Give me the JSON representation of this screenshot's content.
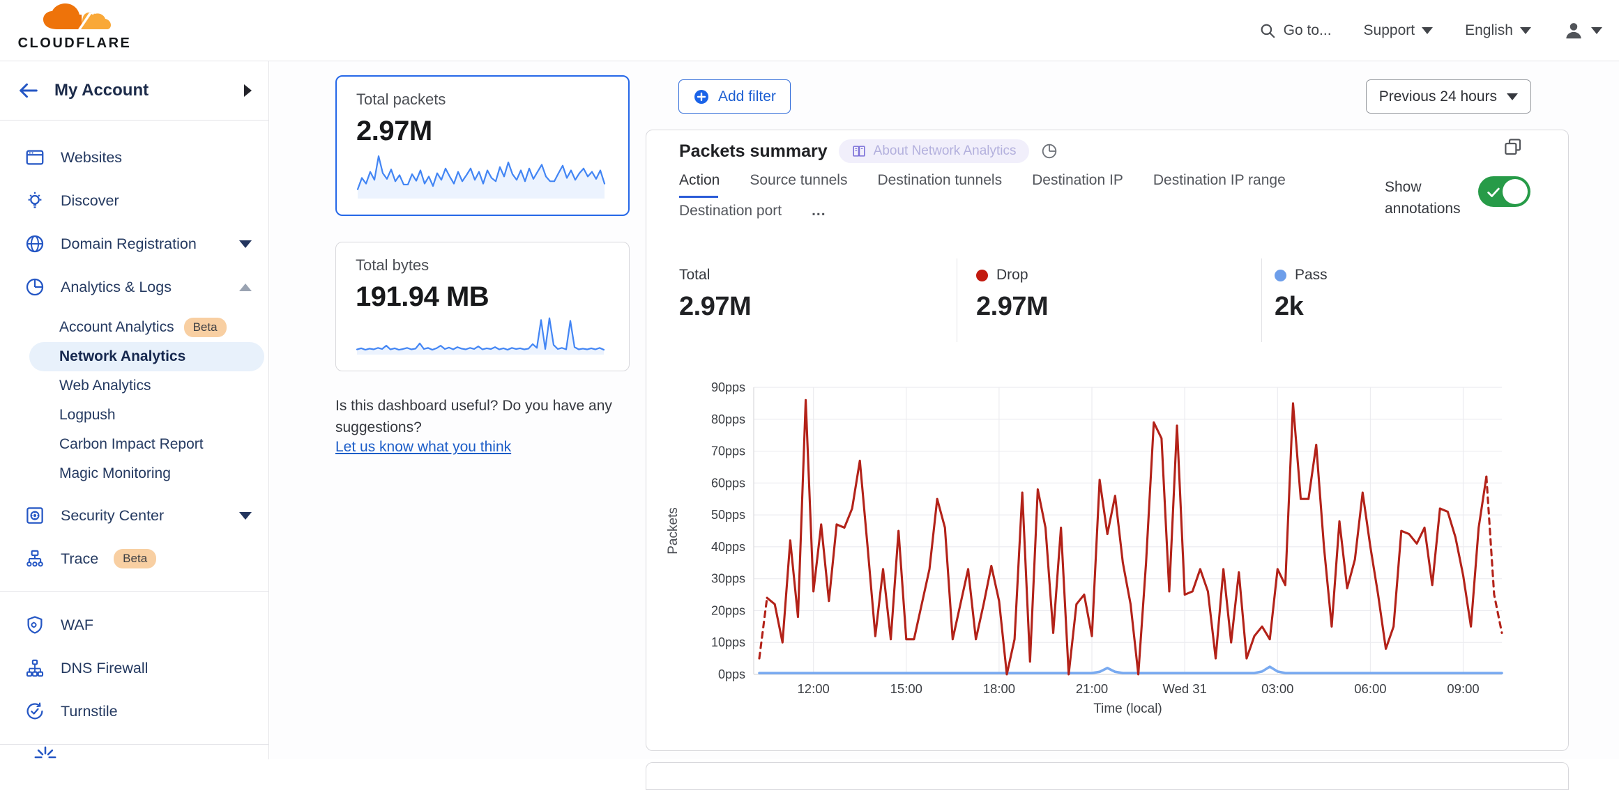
{
  "topbar": {
    "logo_text": "CLOUDFLARE",
    "go_to": "Go to...",
    "support": "Support",
    "language": "English"
  },
  "sidebar": {
    "account_label": "My Account",
    "items_top": [
      {
        "label": "Websites"
      },
      {
        "label": "Discover"
      },
      {
        "label": "Domain Registration"
      },
      {
        "label": "Analytics & Logs"
      }
    ],
    "analytics_children": [
      {
        "label": "Account Analytics",
        "badge": "Beta"
      },
      {
        "label": "Network Analytics",
        "selected": true
      },
      {
        "label": "Web Analytics"
      },
      {
        "label": "Logpush"
      },
      {
        "label": "Carbon Impact Report"
      },
      {
        "label": "Magic Monitoring"
      }
    ],
    "items_mid": [
      {
        "label": "Security Center"
      },
      {
        "label": "Trace",
        "badge": "Beta"
      }
    ],
    "items_tools": [
      {
        "label": "WAF"
      },
      {
        "label": "DNS Firewall"
      },
      {
        "label": "Turnstile"
      }
    ]
  },
  "summary_cards": {
    "packets": {
      "label": "Total packets",
      "value": "2.97M",
      "spark_color": "#4285f4",
      "spark": [
        18,
        42,
        30,
        55,
        38,
        88,
        52,
        40,
        60,
        35,
        48,
        28,
        28,
        50,
        36,
        58,
        30,
        45,
        25,
        52,
        38,
        62,
        45,
        30,
        55,
        35,
        48,
        62,
        38,
        55,
        30,
        58,
        42,
        35,
        65,
        45,
        75,
        50,
        38,
        58,
        35,
        62,
        40,
        55,
        70,
        45,
        35,
        35,
        52,
        68,
        42,
        58,
        38,
        52,
        62,
        45,
        55,
        40,
        58,
        30
      ]
    },
    "bytes": {
      "label": "Total bytes",
      "value": "191.94 MB",
      "spark_color": "#4285f4",
      "spark": [
        12,
        15,
        11,
        14,
        12,
        16,
        13,
        22,
        12,
        15,
        11,
        13,
        16,
        12,
        14,
        28,
        13,
        16,
        11,
        15,
        22,
        13,
        17,
        12,
        18,
        14,
        12,
        16,
        13,
        20,
        12,
        15,
        13,
        18,
        12,
        15,
        11,
        16,
        13,
        15,
        12,
        14,
        26,
        16,
        90,
        13,
        95,
        24,
        13,
        16,
        12,
        88,
        18,
        12,
        14,
        12,
        15,
        12,
        16,
        11
      ]
    }
  },
  "feedback": {
    "text": "Is this dashboard useful? Do you have any suggestions?",
    "link": "Let us know what you think"
  },
  "toolbar": {
    "add_filter": "Add filter",
    "time_range": "Previous 24 hours"
  },
  "panel": {
    "title": "Packets summary",
    "about_badge": "About Network Analytics",
    "tabs": [
      "Action",
      "Source tunnels",
      "Destination tunnels",
      "Destination IP",
      "Destination IP range",
      "Destination port",
      "..."
    ],
    "active_tab": "Action",
    "annotations_label": "Show annotations",
    "annotations_on": true,
    "stats": [
      {
        "label": "Total",
        "value": "2.97M",
        "dot": null
      },
      {
        "label": "Drop",
        "value": "2.97M",
        "dot": "#c21a0f"
      },
      {
        "label": "Pass",
        "value": "2k",
        "dot": "#6d9eea"
      }
    ]
  },
  "chart_data": {
    "type": "line",
    "title": "Packets summary",
    "xlabel": "Time (local)",
    "ylabel": "Packets",
    "ylim": [
      0,
      90
    ],
    "y_ticks": [
      0,
      10,
      20,
      30,
      40,
      50,
      60,
      70,
      80,
      90
    ],
    "y_tick_suffix": "pps",
    "grid": true,
    "x_ticks": [
      "12:00",
      "15:00",
      "18:00",
      "21:00",
      "Wed 31",
      "03:00",
      "06:00",
      "09:00"
    ],
    "x_tick_indices": [
      7,
      19,
      31,
      43,
      55,
      67,
      79,
      91
    ],
    "points_interval_minutes": 15,
    "legend_position": "top",
    "series": [
      {
        "name": "Drop",
        "color": "#b32219",
        "dashed_head_segments": 1,
        "dashed_tail_from_index": 94,
        "values": [
          5,
          24,
          22,
          10,
          42,
          18,
          86,
          26,
          47,
          23,
          47,
          46,
          52,
          67,
          40,
          12,
          33,
          11,
          45,
          11,
          11,
          22,
          33,
          55,
          46,
          11,
          22,
          33,
          11,
          22,
          34,
          23,
          0,
          11,
          57,
          4,
          58,
          46,
          13,
          46,
          0,
          22,
          25,
          12,
          61,
          44,
          56,
          35,
          22,
          0,
          35,
          79,
          74,
          26,
          78,
          25,
          26,
          33,
          26,
          5,
          33,
          10,
          32,
          5,
          12,
          15,
          11,
          33,
          28,
          85,
          55,
          55,
          72,
          40,
          15,
          48,
          27,
          36,
          57,
          40,
          25,
          8,
          15,
          45,
          44,
          41,
          46,
          28,
          52,
          51,
          43,
          31,
          15,
          46,
          62,
          25,
          13
        ]
      },
      {
        "name": "Pass",
        "color": "#79aaf0",
        "values": [
          0.4,
          0.4,
          0.4,
          0.4,
          0.4,
          0.4,
          0.4,
          0.4,
          0.4,
          0.4,
          0.4,
          0.4,
          0.4,
          0.4,
          0.4,
          0.4,
          0.4,
          0.4,
          0.4,
          0.4,
          0.4,
          0.4,
          0.4,
          0.4,
          0.4,
          0.4,
          0.4,
          0.4,
          0.4,
          0.4,
          0.4,
          0.4,
          0.4,
          0.4,
          0.4,
          0.4,
          0.4,
          0.4,
          0.4,
          0.4,
          0.4,
          0.4,
          0.4,
          0.4,
          0.8,
          2,
          0.8,
          0.4,
          0.4,
          0.4,
          0.4,
          0.4,
          0.4,
          0.4,
          0.4,
          0.4,
          0.4,
          0.4,
          0.4,
          0.4,
          0.4,
          0.4,
          0.4,
          0.4,
          0.4,
          0.9,
          2.4,
          0.9,
          0.4,
          0.4,
          0.4,
          0.4,
          0.4,
          0.4,
          0.4,
          0.4,
          0.4,
          0.4,
          0.4,
          0.4,
          0.4,
          0.4,
          0.4,
          0.4,
          0.4,
          0.4,
          0.4,
          0.4,
          0.4,
          0.4,
          0.4,
          0.4,
          0.4,
          0.4,
          0.4,
          0.4,
          0.4
        ]
      }
    ]
  }
}
